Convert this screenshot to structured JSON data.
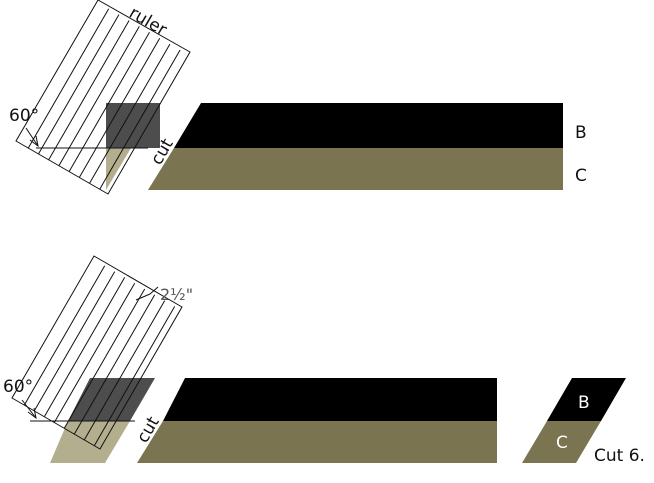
{
  "colors": {
    "strip_b": "#000000",
    "strip_c": "#7a7450",
    "overlay_dark": "#4d4d4d",
    "overlay_tan": "#b3ae8d",
    "lines": "#111111"
  },
  "labels": {
    "ruler": "ruler",
    "angle_top": "60°",
    "angle_bottom": "60°",
    "cut_top": "cut",
    "cut_bottom": "cut",
    "strip_b": "B",
    "strip_c": "C",
    "measure": "2½\"",
    "piece_b": "B",
    "piece_c": "C",
    "cut_count": "Cut 6."
  }
}
